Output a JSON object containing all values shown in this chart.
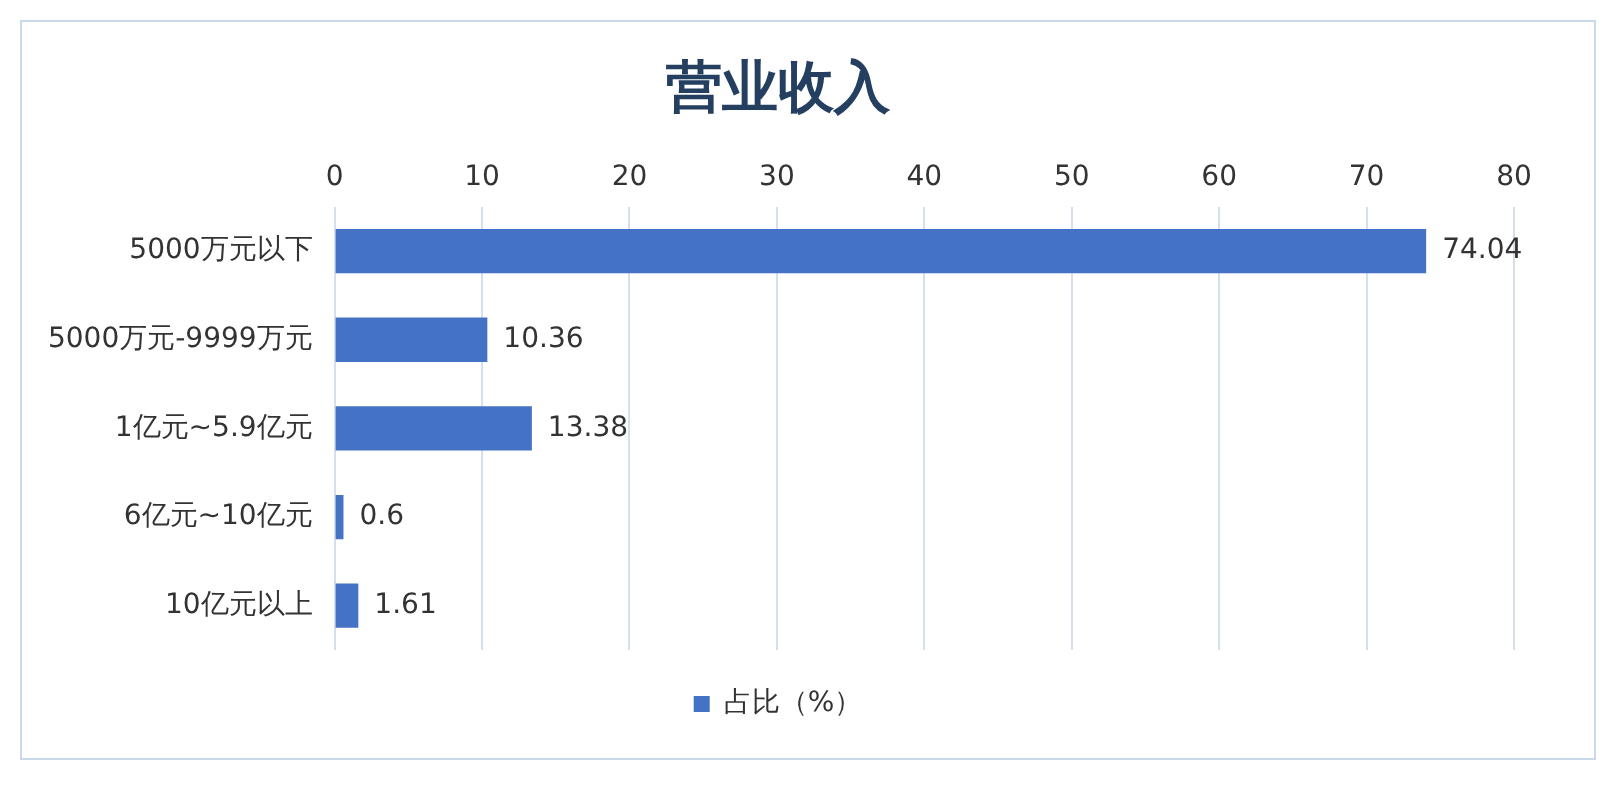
{
  "chart_data": {
    "type": "bar",
    "orientation": "horizontal",
    "title": "营业收入",
    "categories": [
      "5000万元以下",
      "5000万元-9999万元",
      "1亿元~5.9亿元",
      "6亿元~10亿元",
      "10亿元以上"
    ],
    "series": [
      {
        "name": "占比（%）",
        "color": "#4472c4",
        "values": [
          74.04,
          10.36,
          13.38,
          0.6,
          1.61
        ]
      }
    ],
    "xlim": [
      0,
      80
    ],
    "xticks": [
      0,
      10,
      20,
      30,
      40,
      50,
      60,
      70,
      80
    ],
    "grid": "x",
    "legend": "bottom",
    "data_labels": true
  }
}
